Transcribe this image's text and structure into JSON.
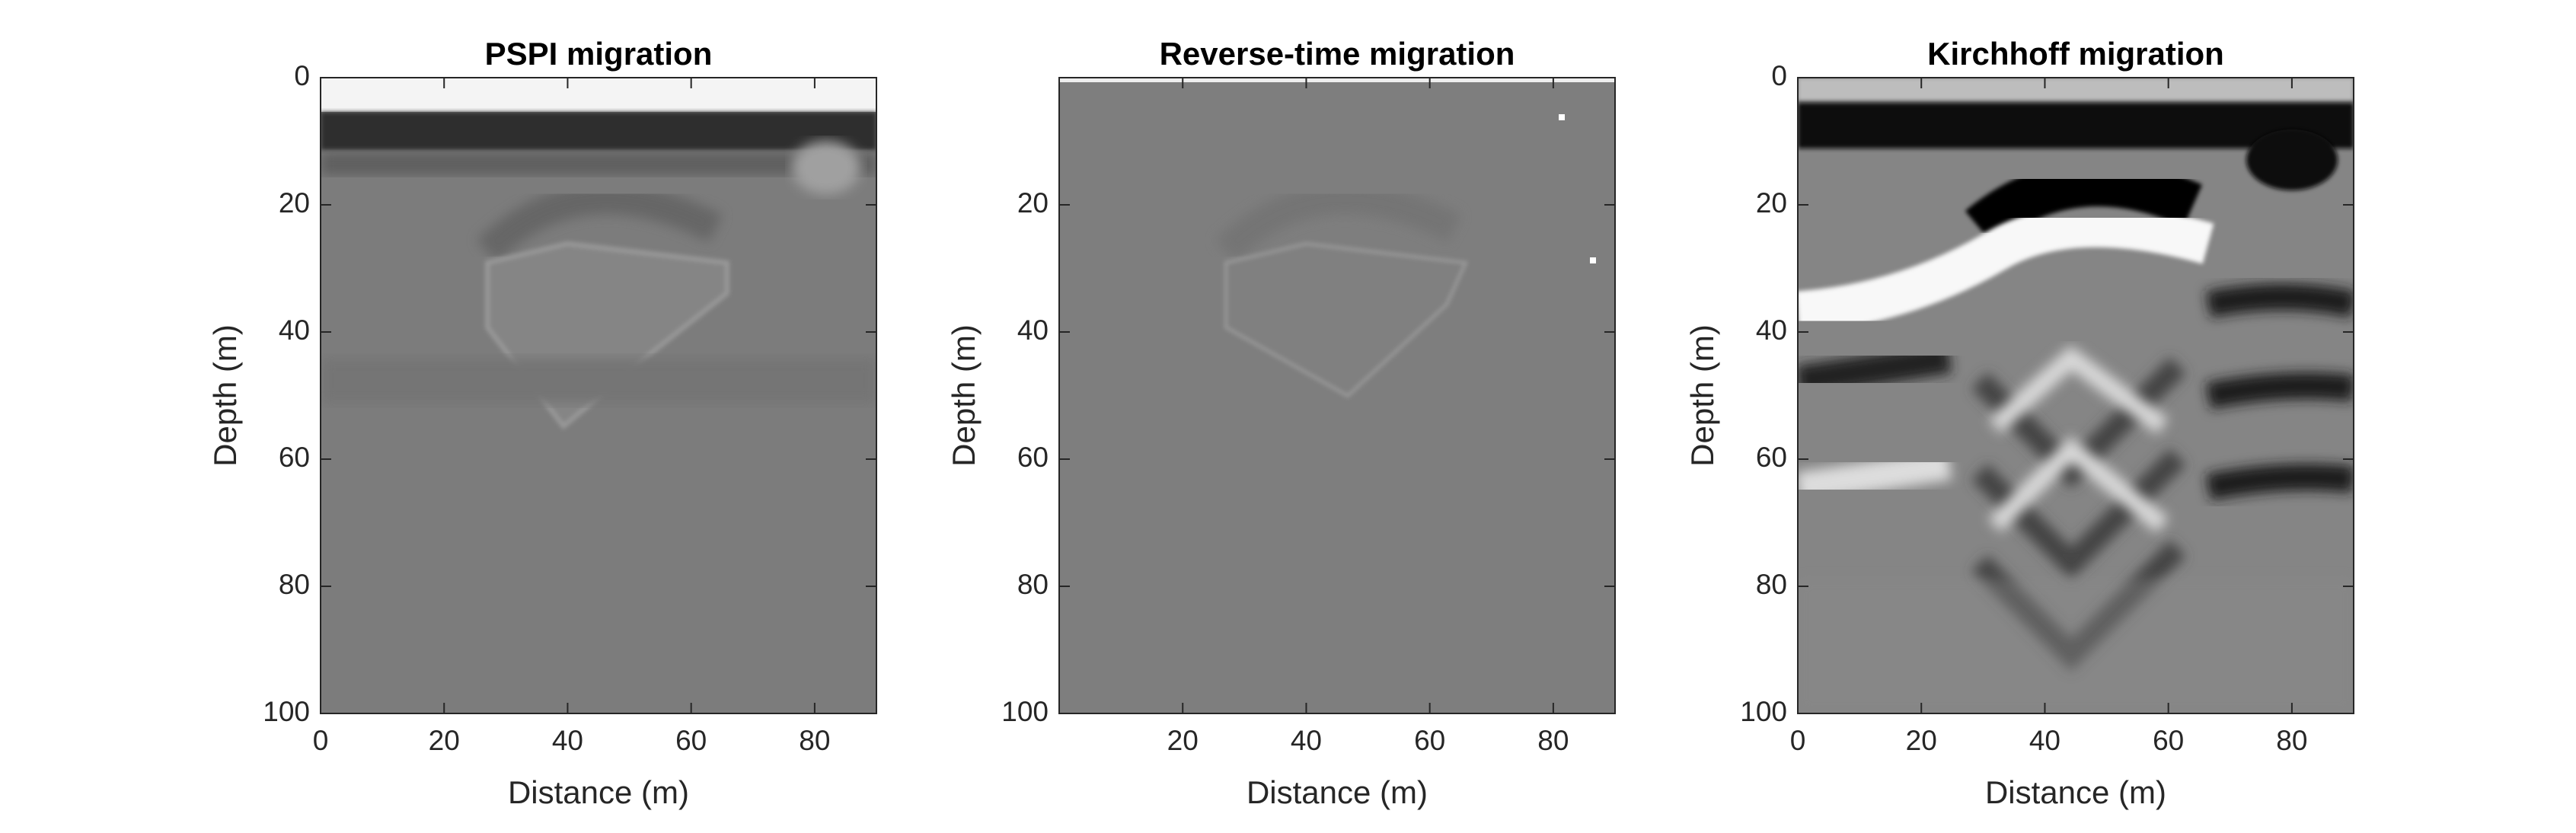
{
  "chart_data": [
    {
      "type": "image",
      "title": "PSPI migration",
      "xlabel": "Distance (m)",
      "ylabel": "Depth (m)",
      "xlim": [
        0,
        90
      ],
      "ylim": [
        0,
        100
      ],
      "xticks": [
        0,
        20,
        40,
        60,
        80
      ],
      "yticks": [
        0,
        20,
        40,
        60,
        80,
        100
      ],
      "y_reversed": true
    },
    {
      "type": "image",
      "title": "Reverse-time migration",
      "xlabel": "Distance (m)",
      "ylabel": "Depth (m)",
      "xlim": [
        0,
        90
      ],
      "ylim": [
        0,
        100
      ],
      "xticks": [
        20,
        40,
        60,
        80
      ],
      "yticks": [
        20,
        40,
        60,
        80,
        100
      ],
      "y_reversed": true
    },
    {
      "type": "image",
      "title": "Kirchhoff migration",
      "xlabel": "Distance (m)",
      "ylabel": "Depth (m)",
      "xlim": [
        0,
        90
      ],
      "ylim": [
        0,
        100
      ],
      "xticks": [
        0,
        20,
        40,
        60,
        80
      ],
      "yticks": [
        0,
        20,
        40,
        60,
        80,
        100
      ],
      "y_reversed": true
    }
  ]
}
